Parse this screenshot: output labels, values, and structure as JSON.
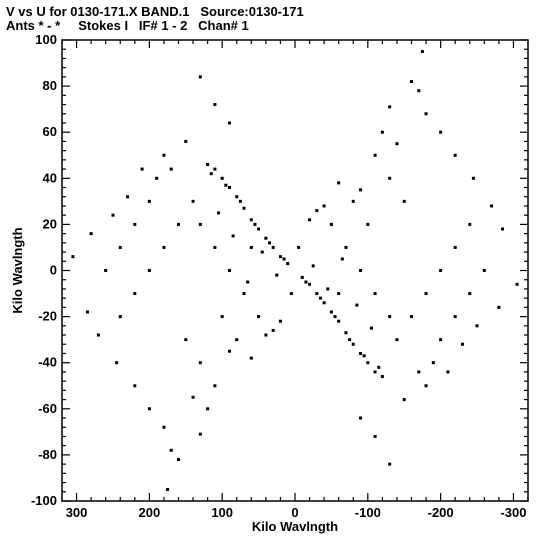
{
  "header": {
    "line1": "V vs U for 0130-171.X BAND.1   Source:0130-171",
    "line2": "Ants * - *     Stokes I   IF# 1 - 2   Chan# 1"
  },
  "chart_data": {
    "type": "scatter",
    "title": "V vs U for 0130-171.X BAND.1   Source:0130-171",
    "subtitle": "Ants * - *     Stokes I   IF# 1 - 2   Chan# 1",
    "xlabel": "Kilo Wavlngth",
    "ylabel": "Kilo Wavlngth",
    "xlim": [
      320,
      -320
    ],
    "ylim": [
      -100,
      100
    ],
    "xticks": [
      300,
      200,
      100,
      0,
      -100,
      -200,
      -300
    ],
    "xtick_labels": [
      "300",
      "200",
      "100",
      "0",
      "-100",
      "-200",
      "-300"
    ],
    "yticks": [
      -100,
      -80,
      -60,
      -40,
      -20,
      0,
      20,
      40,
      60,
      80,
      100
    ],
    "ytick_labels": [
      "-100",
      "-80",
      "-60",
      "-40",
      "-20",
      "0",
      "20",
      "40",
      "60",
      "80",
      "100"
    ],
    "grid": false,
    "marker_color": "#000000",
    "series": [
      {
        "points": [
          [
            305,
            6
          ],
          [
            280,
            16
          ],
          [
            250,
            24
          ],
          [
            230,
            32
          ],
          [
            210,
            44
          ],
          [
            180,
            50
          ],
          [
            150,
            56
          ],
          [
            130,
            84
          ],
          [
            110,
            72
          ],
          [
            90,
            64
          ],
          [
            -305,
            -6
          ],
          [
            -280,
            -16
          ],
          [
            -250,
            -24
          ],
          [
            -230,
            -32
          ],
          [
            -210,
            -44
          ],
          [
            -180,
            -50
          ],
          [
            -150,
            -56
          ],
          [
            -130,
            -84
          ],
          [
            -110,
            -72
          ],
          [
            -90,
            -64
          ],
          [
            285,
            -18
          ],
          [
            270,
            -28
          ],
          [
            245,
            -40
          ],
          [
            220,
            -50
          ],
          [
            200,
            -60
          ],
          [
            180,
            -68
          ],
          [
            170,
            -78
          ],
          [
            160,
            -82
          ],
          [
            175,
            -95
          ],
          [
            130,
            -71
          ],
          [
            -285,
            18
          ],
          [
            -270,
            28
          ],
          [
            -245,
            40
          ],
          [
            -220,
            50
          ],
          [
            -200,
            60
          ],
          [
            -180,
            68
          ],
          [
            -170,
            78
          ],
          [
            -160,
            82
          ],
          [
            -175,
            95
          ],
          [
            -130,
            71
          ],
          [
            120,
            46
          ],
          [
            110,
            44
          ],
          [
            100,
            40
          ],
          [
            90,
            36
          ],
          [
            80,
            32
          ],
          [
            70,
            27
          ],
          [
            60,
            22
          ],
          [
            50,
            18
          ],
          [
            40,
            14
          ],
          [
            30,
            10
          ],
          [
            20,
            6
          ],
          [
            10,
            3
          ],
          [
            -120,
            -46
          ],
          [
            -110,
            -44
          ],
          [
            -100,
            -40
          ],
          [
            -90,
            -36
          ],
          [
            -80,
            -32
          ],
          [
            -70,
            -27
          ],
          [
            -60,
            -22
          ],
          [
            -50,
            -18
          ],
          [
            -40,
            -14
          ],
          [
            -30,
            -10
          ],
          [
            -20,
            -6
          ],
          [
            -10,
            -3
          ],
          [
            115,
            42
          ],
          [
            95,
            37
          ],
          [
            75,
            30
          ],
          [
            55,
            20
          ],
          [
            35,
            12
          ],
          [
            15,
            5
          ],
          [
            -115,
            -42
          ],
          [
            -95,
            -37
          ],
          [
            -75,
            -30
          ],
          [
            -55,
            -20
          ],
          [
            -35,
            -12
          ],
          [
            -15,
            -5
          ],
          [
            140,
            30
          ],
          [
            160,
            20
          ],
          [
            180,
            10
          ],
          [
            200,
            0
          ],
          [
            220,
            -10
          ],
          [
            240,
            -20
          ],
          [
            -140,
            -30
          ],
          [
            -160,
            -20
          ],
          [
            -180,
            -10
          ],
          [
            -200,
            0
          ],
          [
            -220,
            10
          ],
          [
            -240,
            20
          ],
          [
            130,
            20
          ],
          [
            110,
            10
          ],
          [
            90,
            0
          ],
          [
            70,
            -10
          ],
          [
            50,
            -20
          ],
          [
            30,
            -26
          ],
          [
            -130,
            -20
          ],
          [
            -110,
            -10
          ],
          [
            -90,
            0
          ],
          [
            -70,
            10
          ],
          [
            -50,
            20
          ],
          [
            -30,
            26
          ],
          [
            100,
            -20
          ],
          [
            80,
            -30
          ],
          [
            60,
            -38
          ],
          [
            40,
            -28
          ],
          [
            20,
            -22
          ],
          [
            5,
            -10
          ],
          [
            -100,
            20
          ],
          [
            -80,
            30
          ],
          [
            -60,
            38
          ],
          [
            -40,
            28
          ],
          [
            -20,
            22
          ],
          [
            -5,
            10
          ],
          [
            150,
            -30
          ],
          [
            130,
            -40
          ],
          [
            110,
            -50
          ],
          [
            90,
            -35
          ],
          [
            120,
            -60
          ],
          [
            140,
            -55
          ],
          [
            -150,
            30
          ],
          [
            -130,
            40
          ],
          [
            -110,
            50
          ],
          [
            -90,
            35
          ],
          [
            -120,
            60
          ],
          [
            -140,
            55
          ],
          [
            200,
            30
          ],
          [
            220,
            20
          ],
          [
            260,
            0
          ],
          [
            190,
            40
          ],
          [
            170,
            44
          ],
          [
            240,
            10
          ],
          [
            -200,
            -30
          ],
          [
            -220,
            -20
          ],
          [
            -260,
            0
          ],
          [
            -190,
            -40
          ],
          [
            -170,
            -44
          ],
          [
            -240,
            -10
          ],
          [
            60,
            10
          ],
          [
            45,
            8
          ],
          [
            25,
            -2
          ],
          [
            65,
            -5
          ],
          [
            85,
            15
          ],
          [
            105,
            25
          ],
          [
            -60,
            -10
          ],
          [
            -45,
            -8
          ],
          [
            -25,
            2
          ],
          [
            -65,
            5
          ],
          [
            -85,
            -15
          ],
          [
            -105,
            -25
          ]
        ]
      }
    ]
  }
}
